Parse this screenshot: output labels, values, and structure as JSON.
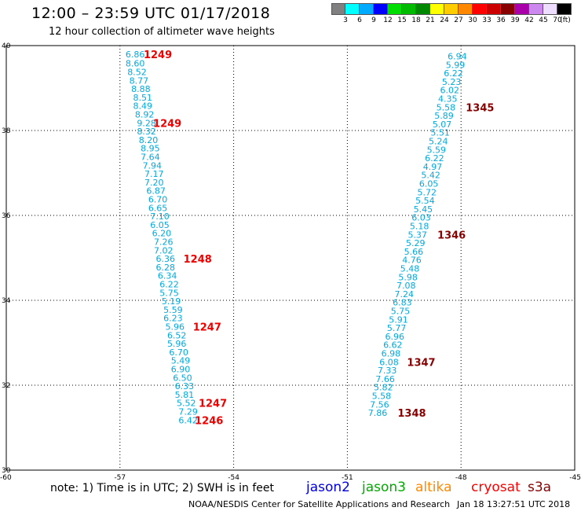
{
  "header": {
    "title": "12:00 – 23:59 UTC 01/17/2018",
    "subtitle": "12 hour collection of altimeter wave heights"
  },
  "color_scale": {
    "unit": "(ft)",
    "bins": [
      {
        "label": "3",
        "color": "#808080"
      },
      {
        "label": "6",
        "color": "#00ffff"
      },
      {
        "label": "9",
        "color": "#00aaff"
      },
      {
        "label": "12",
        "color": "#0000ff"
      },
      {
        "label": "15",
        "color": "#00dd00"
      },
      {
        "label": "18",
        "color": "#00bb00"
      },
      {
        "label": "21",
        "color": "#008800"
      },
      {
        "label": "24",
        "color": "#ffff00"
      },
      {
        "label": "27",
        "color": "#ffcc00"
      },
      {
        "label": "30",
        "color": "#ff8800"
      },
      {
        "label": "33",
        "color": "#ff0000"
      },
      {
        "label": "36",
        "color": "#cc0000"
      },
      {
        "label": "39",
        "color": "#880000"
      },
      {
        "label": "42",
        "color": "#aa00aa"
      },
      {
        "label": "45",
        "color": "#cc88ee"
      },
      {
        "label": "70",
        "color": "#eeddff"
      },
      {
        "label": "",
        "color": "#000000"
      }
    ]
  },
  "footer": {
    "note": "note:  1) Time is in UTC;  2) SWH is in feet",
    "credit": "NOAA/NESDIS Center for Satellite Applications and Research",
    "timestamp": "Jan 18 13:27:51 UTC 2018"
  },
  "missions": [
    {
      "name": "jason2",
      "color": "#0000dd"
    },
    {
      "name": "jason3",
      "color": "#00aa00"
    },
    {
      "name": "altika",
      "color": "#ff8800"
    },
    {
      "name": "cryosat",
      "color": "#ff0000"
    },
    {
      "name": "s3a",
      "color": "#880000"
    }
  ],
  "chart_data": {
    "type": "scatter",
    "xlim": [
      -60,
      -45
    ],
    "ylim": [
      30,
      40
    ],
    "x_ticks": [
      "-60",
      "-57",
      "-54",
      "-51",
      "-48",
      "-45"
    ],
    "y_ticks": [
      "30",
      "32",
      "34",
      "36",
      "38",
      "40"
    ],
    "grid": "dotted",
    "series": [
      {
        "name": "cryosat",
        "label_color": "#00aadd",
        "time_color": "#ee0000",
        "points": [
          {
            "x": -56.6,
            "y": 39.8,
            "v": "6.86"
          },
          {
            "x": -56.6,
            "y": 39.58,
            "v": "8.60"
          },
          {
            "x": -56.55,
            "y": 39.38,
            "v": "8.52"
          },
          {
            "x": -56.5,
            "y": 39.18,
            "v": "8.77"
          },
          {
            "x": -56.45,
            "y": 38.98,
            "v": "8.88"
          },
          {
            "x": -56.4,
            "y": 38.78,
            "v": "8.51"
          },
          {
            "x": -56.4,
            "y": 38.58,
            "v": "8.49"
          },
          {
            "x": -56.35,
            "y": 38.38,
            "v": "8.92"
          },
          {
            "x": -56.3,
            "y": 38.18,
            "v": "9.28"
          },
          {
            "x": -56.3,
            "y": 37.98,
            "v": "8.32"
          },
          {
            "x": -56.25,
            "y": 37.78,
            "v": "8.20"
          },
          {
            "x": -56.2,
            "y": 37.58,
            "v": "8.95"
          },
          {
            "x": -56.2,
            "y": 37.38,
            "v": "7.64"
          },
          {
            "x": -56.15,
            "y": 37.18,
            "v": "7.94"
          },
          {
            "x": -56.1,
            "y": 36.98,
            "v": "7.17"
          },
          {
            "x": -56.1,
            "y": 36.78,
            "v": "7.20"
          },
          {
            "x": -56.05,
            "y": 36.58,
            "v": "6.87"
          },
          {
            "x": -56.0,
            "y": 36.38,
            "v": "6.70"
          },
          {
            "x": -56.0,
            "y": 36.18,
            "v": "6.65"
          },
          {
            "x": -55.95,
            "y": 35.98,
            "v": "7.10"
          },
          {
            "x": -55.95,
            "y": 35.78,
            "v": "6.05"
          },
          {
            "x": -55.9,
            "y": 35.58,
            "v": "6.20"
          },
          {
            "x": -55.85,
            "y": 35.38,
            "v": "7.26"
          },
          {
            "x": -55.85,
            "y": 35.18,
            "v": "7.02"
          },
          {
            "x": -55.8,
            "y": 34.98,
            "v": "6.36"
          },
          {
            "x": -55.8,
            "y": 34.78,
            "v": "6.28"
          },
          {
            "x": -55.75,
            "y": 34.58,
            "v": "6.34"
          },
          {
            "x": -55.7,
            "y": 34.38,
            "v": "6.22"
          },
          {
            "x": -55.7,
            "y": 34.18,
            "v": "5.75"
          },
          {
            "x": -55.65,
            "y": 33.98,
            "v": "5.19"
          },
          {
            "x": -55.6,
            "y": 33.78,
            "v": "5.59"
          },
          {
            "x": -55.6,
            "y": 33.58,
            "v": "6.23"
          },
          {
            "x": -55.55,
            "y": 33.38,
            "v": "5.96"
          },
          {
            "x": -55.5,
            "y": 33.18,
            "v": "6.52"
          },
          {
            "x": -55.5,
            "y": 32.98,
            "v": "5.96"
          },
          {
            "x": -55.45,
            "y": 32.78,
            "v": "6.70"
          },
          {
            "x": -55.4,
            "y": 32.58,
            "v": "5.49"
          },
          {
            "x": -55.4,
            "y": 32.38,
            "v": "6.90"
          },
          {
            "x": -55.35,
            "y": 32.18,
            "v": "6.50"
          },
          {
            "x": -55.3,
            "y": 31.98,
            "v": "6.33"
          },
          {
            "x": -55.3,
            "y": 31.78,
            "v": "5.81"
          },
          {
            "x": -55.25,
            "y": 31.58,
            "v": "5.52"
          },
          {
            "x": -55.2,
            "y": 31.38,
            "v": "7.29"
          },
          {
            "x": -55.2,
            "y": 31.18,
            "v": "6.42"
          }
        ],
        "times": [
          {
            "x": -56.0,
            "y": 39.8,
            "t": "1249"
          },
          {
            "x": -55.75,
            "y": 38.18,
            "t": "1249"
          },
          {
            "x": -54.95,
            "y": 34.98,
            "t": "1248"
          },
          {
            "x": -54.7,
            "y": 33.38,
            "t": "1247"
          },
          {
            "x": -54.55,
            "y": 31.58,
            "t": "1247"
          },
          {
            "x": -54.65,
            "y": 31.18,
            "t": "1246"
          }
        ]
      },
      {
        "name": "s3a",
        "label_color": "#00aadd",
        "time_color": "#880000",
        "points": [
          {
            "x": -48.1,
            "y": 39.75,
            "v": "6.94"
          },
          {
            "x": -48.15,
            "y": 39.55,
            "v": "5.99"
          },
          {
            "x": -48.2,
            "y": 39.35,
            "v": "6.22"
          },
          {
            "x": -48.25,
            "y": 39.15,
            "v": "5.23"
          },
          {
            "x": -48.3,
            "y": 38.95,
            "v": "6.02"
          },
          {
            "x": -48.35,
            "y": 38.75,
            "v": "4.35"
          },
          {
            "x": -48.4,
            "y": 38.55,
            "v": "5.58"
          },
          {
            "x": -48.45,
            "y": 38.35,
            "v": "5.89"
          },
          {
            "x": -48.5,
            "y": 38.15,
            "v": "5.07"
          },
          {
            "x": -48.55,
            "y": 37.95,
            "v": "5.51"
          },
          {
            "x": -48.6,
            "y": 37.75,
            "v": "5.24"
          },
          {
            "x": -48.65,
            "y": 37.55,
            "v": "5.59"
          },
          {
            "x": -48.7,
            "y": 37.35,
            "v": "6.22"
          },
          {
            "x": -48.75,
            "y": 37.15,
            "v": "4.97"
          },
          {
            "x": -48.8,
            "y": 36.95,
            "v": "5.42"
          },
          {
            "x": -48.85,
            "y": 36.75,
            "v": "6.05"
          },
          {
            "x": -48.9,
            "y": 36.55,
            "v": "5.72"
          },
          {
            "x": -48.95,
            "y": 36.35,
            "v": "5.54"
          },
          {
            "x": -49.0,
            "y": 36.15,
            "v": "5.45"
          },
          {
            "x": -49.05,
            "y": 35.95,
            "v": "6.03"
          },
          {
            "x": -49.1,
            "y": 35.75,
            "v": "5.18"
          },
          {
            "x": -49.15,
            "y": 35.55,
            "v": "5.37"
          },
          {
            "x": -49.2,
            "y": 35.35,
            "v": "5.29"
          },
          {
            "x": -49.25,
            "y": 35.15,
            "v": "5.66"
          },
          {
            "x": -49.3,
            "y": 34.95,
            "v": "4.76"
          },
          {
            "x": -49.35,
            "y": 34.75,
            "v": "5.48"
          },
          {
            "x": -49.4,
            "y": 34.55,
            "v": "5.98"
          },
          {
            "x": -49.45,
            "y": 34.35,
            "v": "7.08"
          },
          {
            "x": -49.5,
            "y": 34.15,
            "v": "7.24"
          },
          {
            "x": -49.55,
            "y": 33.95,
            "v": "6.83"
          },
          {
            "x": -49.6,
            "y": 33.75,
            "v": "5.75"
          },
          {
            "x": -49.65,
            "y": 33.55,
            "v": "5.91"
          },
          {
            "x": -49.7,
            "y": 33.35,
            "v": "5.77"
          },
          {
            "x": -49.75,
            "y": 33.15,
            "v": "6.96"
          },
          {
            "x": -49.8,
            "y": 32.95,
            "v": "6.62"
          },
          {
            "x": -49.85,
            "y": 32.75,
            "v": "6.98"
          },
          {
            "x": -49.9,
            "y": 32.55,
            "v": "6.08"
          },
          {
            "x": -49.95,
            "y": 32.35,
            "v": "7.33"
          },
          {
            "x": -50.0,
            "y": 32.15,
            "v": "7.66"
          },
          {
            "x": -50.05,
            "y": 31.95,
            "v": "5.82"
          },
          {
            "x": -50.1,
            "y": 31.75,
            "v": "5.58"
          },
          {
            "x": -50.15,
            "y": 31.55,
            "v": "7.56"
          },
          {
            "x": -50.2,
            "y": 31.35,
            "v": "7.86"
          }
        ],
        "times": [
          {
            "x": -47.5,
            "y": 38.55,
            "t": "1345"
          },
          {
            "x": -48.25,
            "y": 35.55,
            "t": "1346"
          },
          {
            "x": -49.05,
            "y": 32.55,
            "t": "1347"
          },
          {
            "x": -49.3,
            "y": 31.35,
            "t": "1348"
          }
        ]
      }
    ]
  }
}
